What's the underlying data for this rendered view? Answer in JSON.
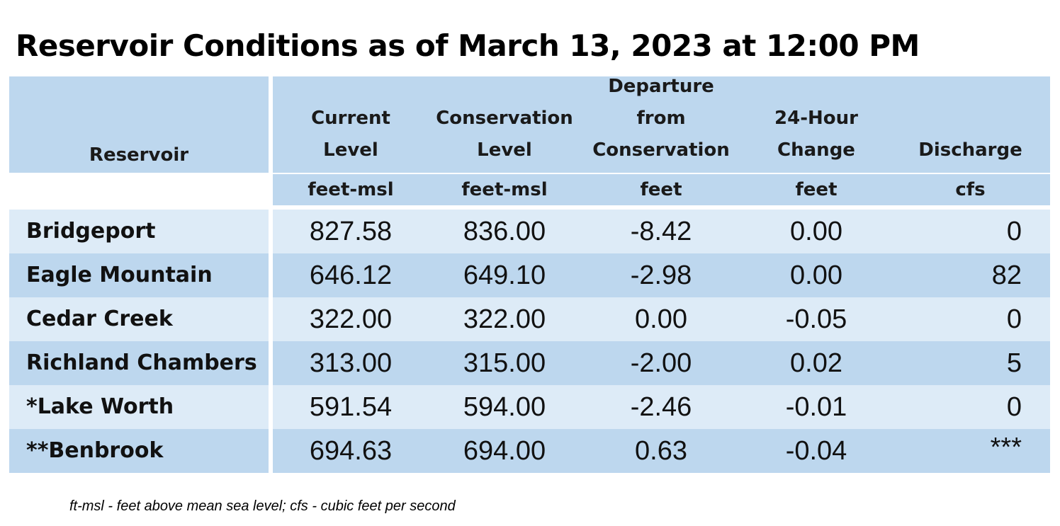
{
  "title": "Reservoir Conditions as of March 13, 2023 at 12:00 PM",
  "columns": [
    {
      "header": [
        "Reservoir"
      ],
      "unit": ""
    },
    {
      "header": [
        "Current",
        "Level"
      ],
      "unit": "feet-msl"
    },
    {
      "header": [
        "Conservation",
        "Level"
      ],
      "unit": "feet-msl"
    },
    {
      "header": [
        "Departure",
        "from",
        "Conservation"
      ],
      "unit": "feet"
    },
    {
      "header": [
        "24-Hour",
        "Change"
      ],
      "unit": "feet"
    },
    {
      "header": [
        "Discharge"
      ],
      "unit": "cfs"
    }
  ],
  "rows": [
    {
      "name": "Bridgeport",
      "current": "827.58",
      "conservation": "836.00",
      "departure": "-8.42",
      "change": "0.00",
      "discharge": "0"
    },
    {
      "name": "Eagle Mountain",
      "current": "646.12",
      "conservation": "649.10",
      "departure": "-2.98",
      "change": "0.00",
      "discharge": "82"
    },
    {
      "name": "Cedar Creek",
      "current": "322.00",
      "conservation": "322.00",
      "departure": "0.00",
      "change": "-0.05",
      "discharge": "0"
    },
    {
      "name": "Richland Chambers",
      "current": "313.00",
      "conservation": "315.00",
      "departure": "-2.00",
      "change": "0.02",
      "discharge": "5"
    },
    {
      "name": "*Lake Worth",
      "current": "591.54",
      "conservation": "594.00",
      "departure": "-2.46",
      "change": "-0.01",
      "discharge": "0"
    },
    {
      "name": "**Benbrook",
      "current": "694.63",
      "conservation": "694.00",
      "departure": "0.63",
      "change": "-0.04",
      "discharge": "***"
    }
  ],
  "footnote": "ft-msl - feet above mean sea level; cfs - cubic feet per second",
  "colors": {
    "header_bg": "#bdd7ee",
    "row_light": "#ddebf7",
    "row_dark": "#bdd7ee"
  }
}
